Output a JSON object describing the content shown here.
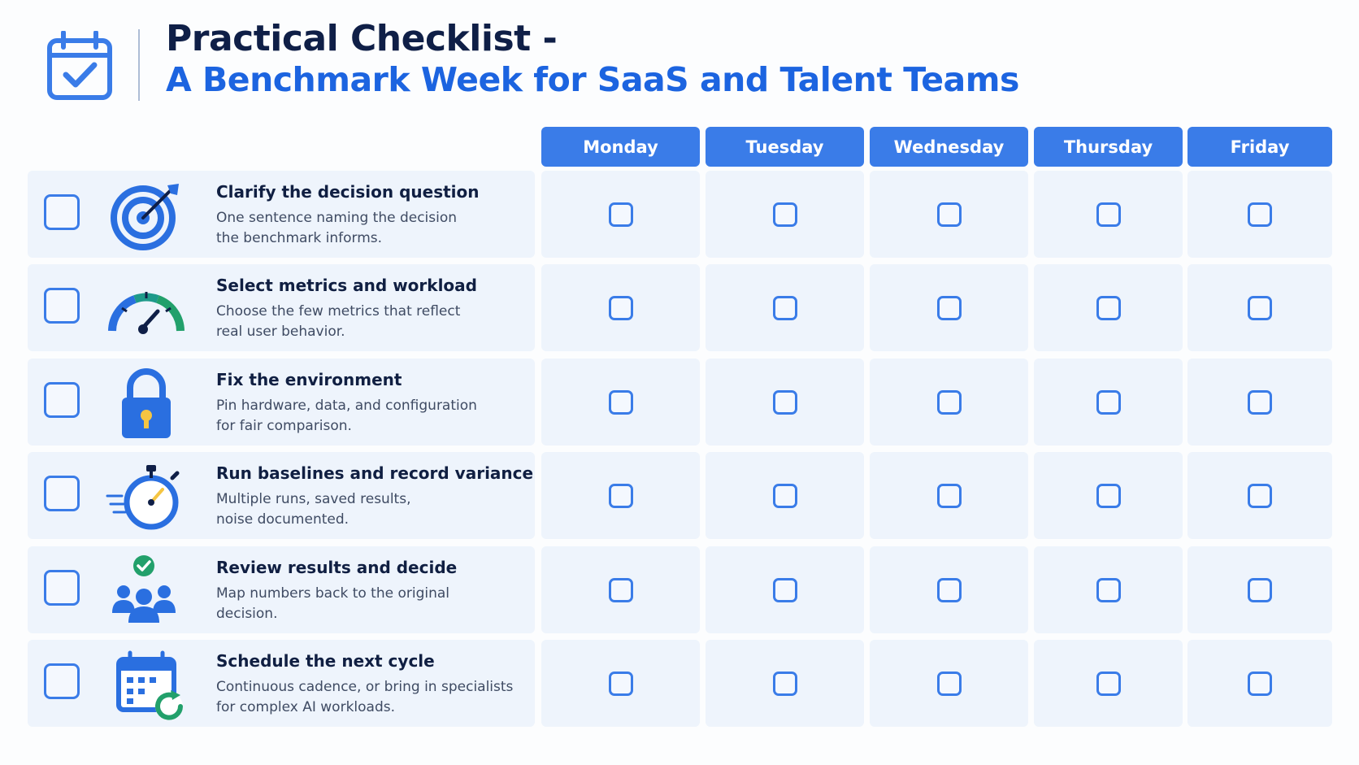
{
  "header": {
    "title_line1": "Practical Checklist -",
    "title_line2": "A Benchmark Week for SaaS and Talent Teams",
    "icon": "calendar-check-icon"
  },
  "days": [
    "Monday",
    "Tuesday",
    "Wednesday",
    "Thursday",
    "Friday"
  ],
  "tasks": [
    {
      "title": "Clarify the decision question",
      "desc_line1": "One sentence naming the decision",
      "desc_line2": "the benchmark informs.",
      "icon": "target-icon"
    },
    {
      "title": "Select metrics and workload",
      "desc_line1": "Choose the few metrics that reflect",
      "desc_line2": "real user behavior.",
      "icon": "gauge-icon"
    },
    {
      "title": "Fix the environment",
      "desc_line1": "Pin hardware, data, and configuration",
      "desc_line2": "for fair comparison.",
      "icon": "lock-icon"
    },
    {
      "title": "Run baselines and record variance",
      "desc_line1": "Multiple runs, saved results,",
      "desc_line2": "noise documented.",
      "icon": "stopwatch-icon"
    },
    {
      "title": "Review results and decide",
      "desc_line1": "Map numbers back to the original",
      "desc_line2": "decision.",
      "icon": "team-check-icon"
    },
    {
      "title": "Schedule the next cycle",
      "desc_line1": "Continuous cadence, or bring in specialists",
      "desc_line2": "for complex AI workloads.",
      "icon": "calendar-refresh-icon"
    }
  ],
  "colors": {
    "accent": "#3a7ce8",
    "title": "#0f1f47",
    "subtitle": "#1c64e0",
    "row_bg": "#eef4fc",
    "green": "#22a06b"
  }
}
